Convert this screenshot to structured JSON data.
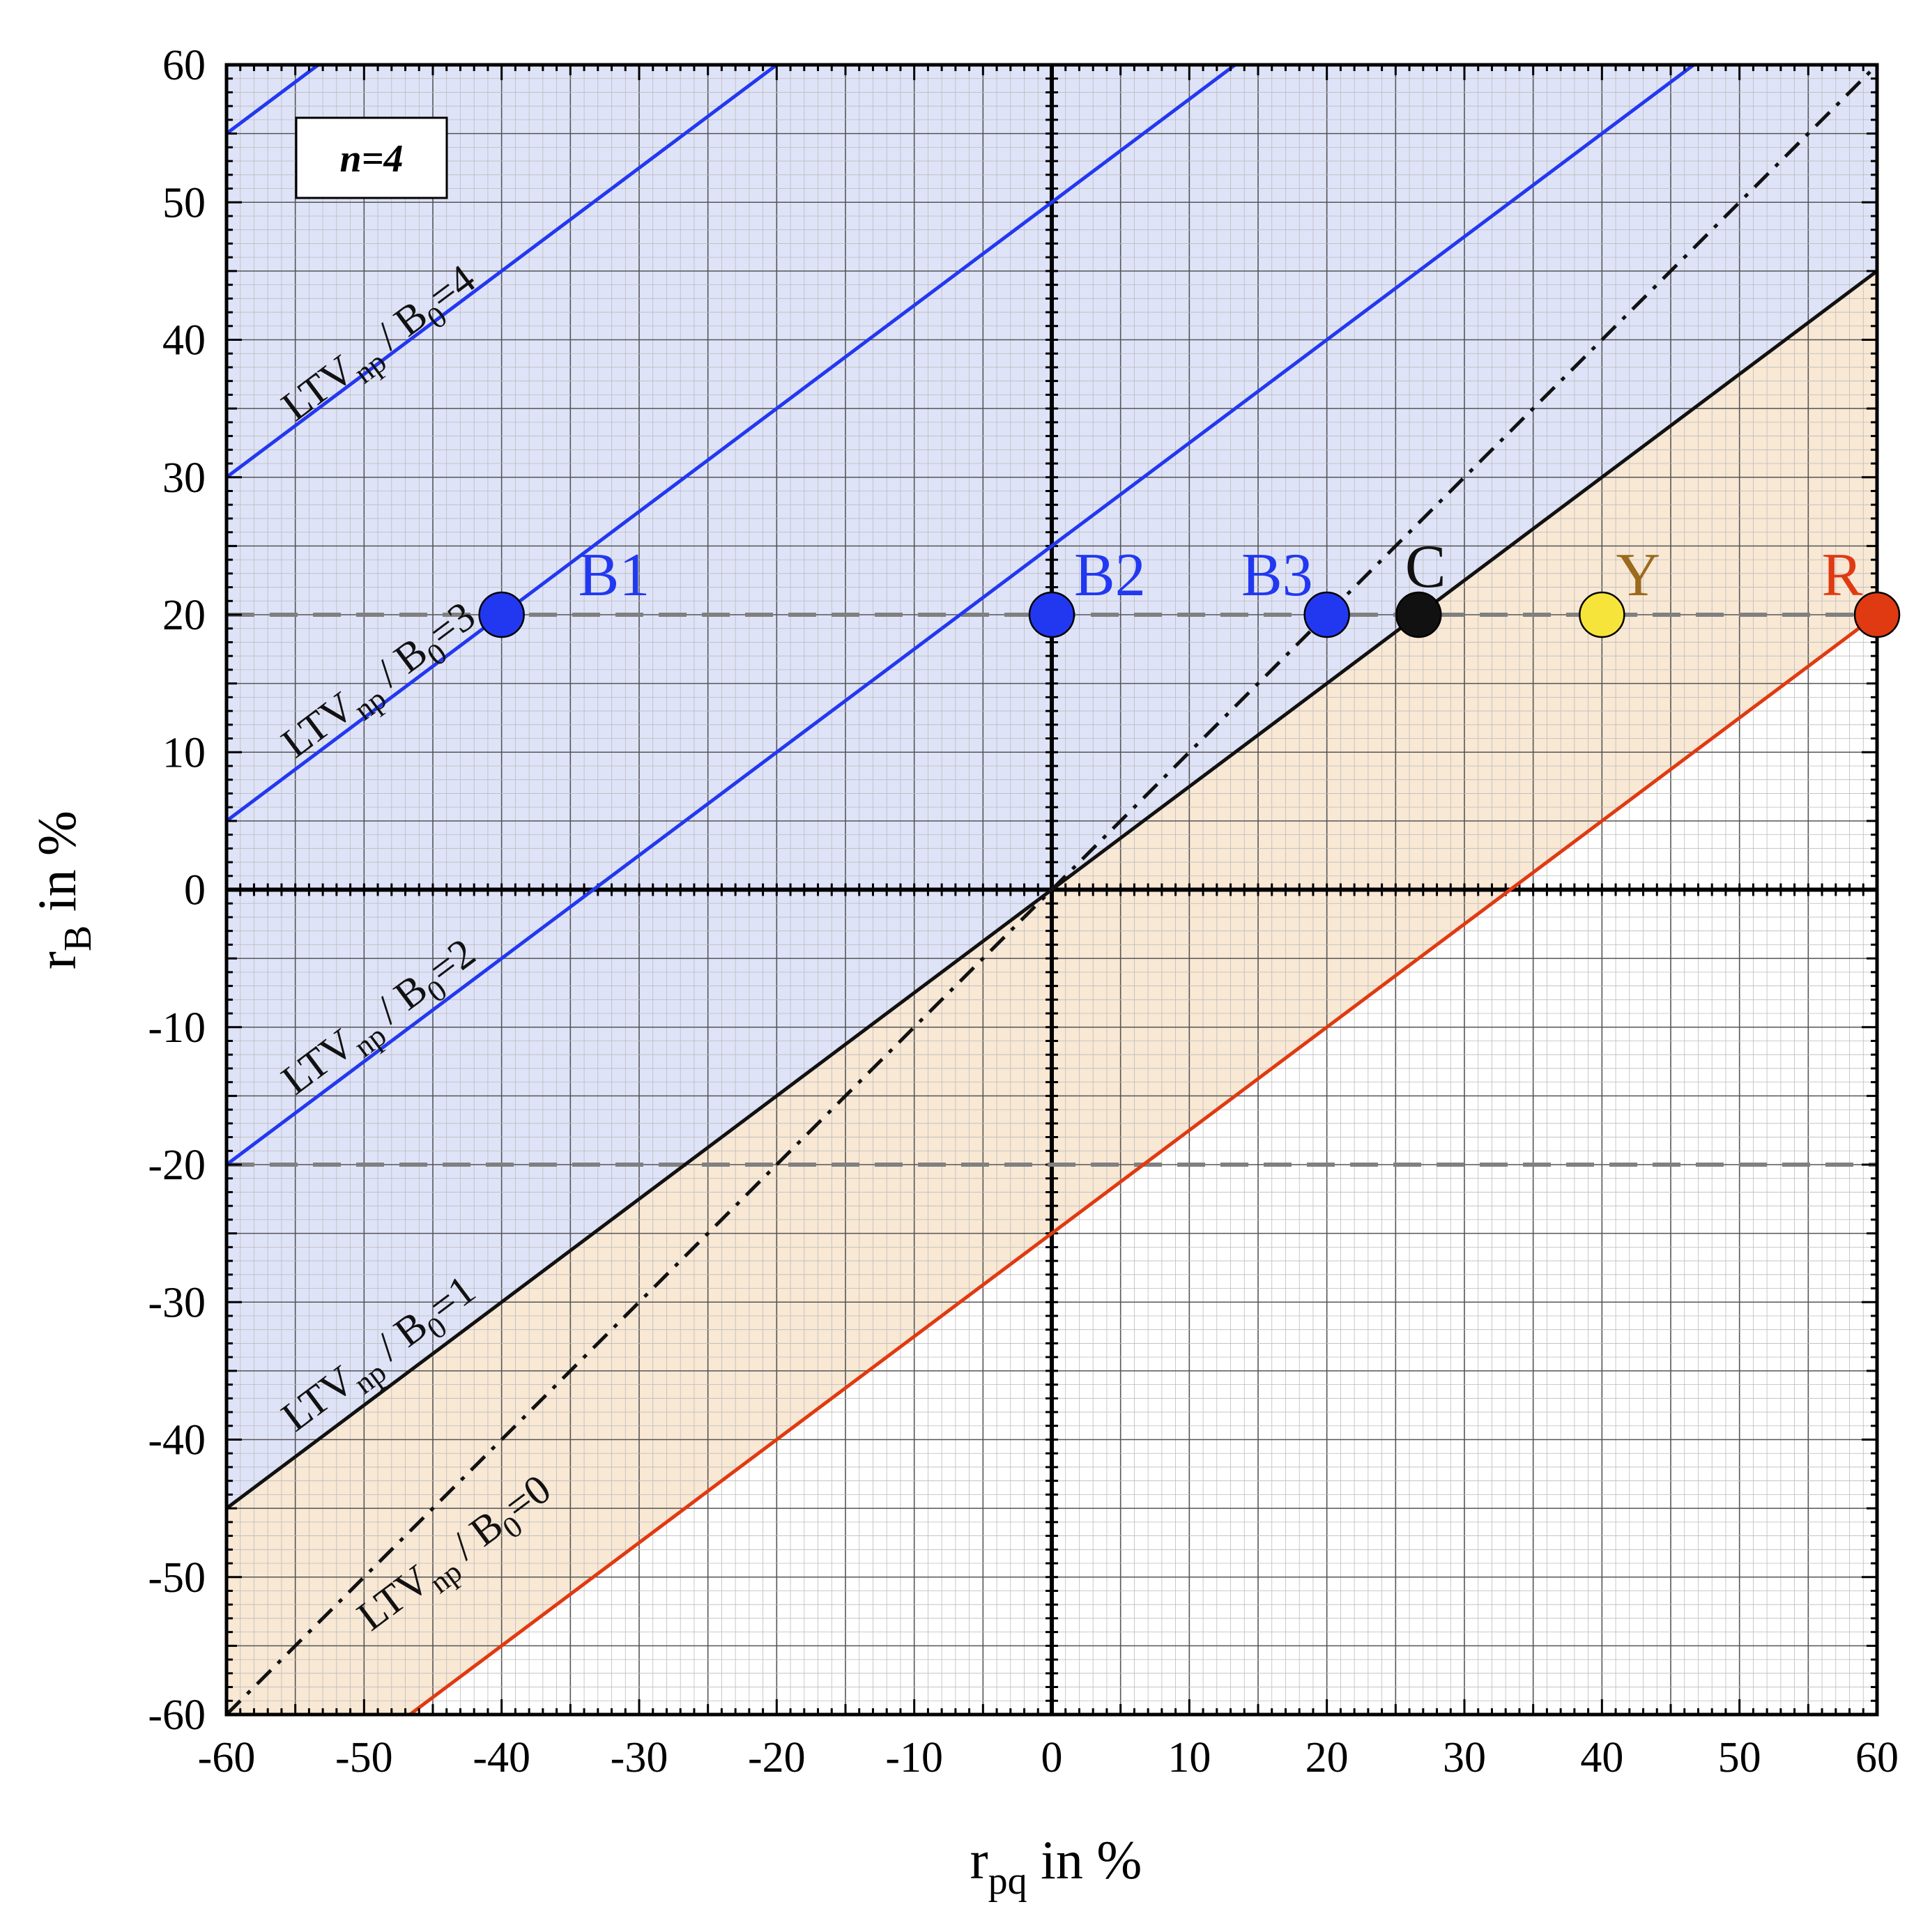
{
  "chart_data": {
    "type": "line",
    "annotation_box": "n=4",
    "xlabel": {
      "main": "r",
      "sub": "pq",
      "tail": " in %"
    },
    "ylabel": {
      "main": "r",
      "sub": "B",
      "tail": "  in %"
    },
    "xlim": [
      -60,
      60
    ],
    "ylim": [
      -60,
      60
    ],
    "x_ticks": [
      -60,
      -50,
      -40,
      -30,
      -20,
      -10,
      0,
      10,
      20,
      30,
      40,
      50,
      60
    ],
    "y_ticks": [
      -60,
      -50,
      -40,
      -30,
      -20,
      -10,
      0,
      10,
      20,
      30,
      40,
      50,
      60
    ],
    "grid": true,
    "colors": {
      "blue": "#2238f0",
      "black": "#111111",
      "red": "#e03a12",
      "region_blue": "#dfe3f8",
      "region_orange": "#f8e8d4",
      "dash_grey": "#808080",
      "yellow": "#f7e43a",
      "label_brown": "#9b6a1e",
      "label_red": "#e03a12"
    },
    "series": [
      {
        "label": {
          "pre": "LTV",
          "sub1": "np",
          "mid": " / B",
          "sub2": "0",
          "post": "=0"
        },
        "color": "#e03a12",
        "style": "solid",
        "points": [
          [
            -46.67,
            -60
          ],
          [
            60,
            20
          ]
        ]
      },
      {
        "label": {
          "pre": "LTV",
          "sub1": "np",
          "mid": " / B",
          "sub2": "0",
          "post": "=1"
        },
        "color": "#111111",
        "style": "solid",
        "points": [
          [
            -60,
            -45
          ],
          [
            60,
            45
          ]
        ]
      },
      {
        "label": {
          "pre": "LTV",
          "sub1": "np",
          "mid": " / B",
          "sub2": "0",
          "post": "=2"
        },
        "color": "#2238f0",
        "style": "solid",
        "points": [
          [
            -60,
            -20
          ],
          [
            26.67,
            45
          ]
        ]
      },
      {
        "label": {
          "pre": "LTV",
          "sub1": "np",
          "mid": " / B",
          "sub2": "0",
          "post": "=3"
        },
        "color": "#2238f0",
        "style": "solid",
        "points": [
          [
            -60,
            5
          ],
          [
            6.67,
            55
          ]
        ]
      },
      {
        "label": {
          "pre": "LTV",
          "sub1": "np",
          "mid": " / B",
          "sub2": "0",
          "post": "=4"
        },
        "color": "#2238f0",
        "style": "solid",
        "points": [
          [
            -60,
            30
          ],
          [
            -13.33,
            65
          ]
        ]
      }
    ],
    "extra_lines": [
      {
        "color": "#2238f0",
        "points": [
          [
            -60,
            55
          ],
          [
            -53.33,
            60
          ]
        ]
      },
      {
        "color": "#2238f0",
        "points": [
          [
            -60,
            5
          ],
          [
            13.33,
            60
          ]
        ]
      },
      {
        "color": "#2238f0",
        "points": [
          [
            -33.33,
            0
          ],
          [
            46.67,
            60
          ]
        ]
      },
      {
        "color": "#2238f0",
        "points": [
          [
            -60,
            -20
          ],
          [
            -33.33,
            0
          ]
        ]
      },
      {
        "color": "#2238f0",
        "points": [
          [
            -60,
            30
          ],
          [
            -13.33,
            65
          ]
        ]
      }
    ],
    "diagonal": {
      "points": [
        [
          -60,
          -60
        ],
        [
          60,
          60
        ]
      ]
    },
    "hlines": [
      20,
      -20
    ],
    "points": [
      {
        "label": "B1",
        "x": -40,
        "y": 20,
        "fill": "#2238f0",
        "label_color": "#2238f0"
      },
      {
        "label": "B2",
        "x": 0,
        "y": 20,
        "fill": "#2238f0",
        "label_color": "#2238f0"
      },
      {
        "label": "B3",
        "x": 20,
        "y": 20,
        "fill": "#2238f0",
        "label_color": "#2238f0"
      },
      {
        "label": "C",
        "x": 26.67,
        "y": 20,
        "fill": "#111111",
        "label_color": "#111111"
      },
      {
        "label": "Y",
        "x": 40,
        "y": 20,
        "fill": "#f7e43a",
        "label_color": "#9b6a1e"
      },
      {
        "label": "R",
        "x": 60,
        "y": 20,
        "fill": "#e03a12",
        "label_color": "#e03a12"
      }
    ]
  }
}
